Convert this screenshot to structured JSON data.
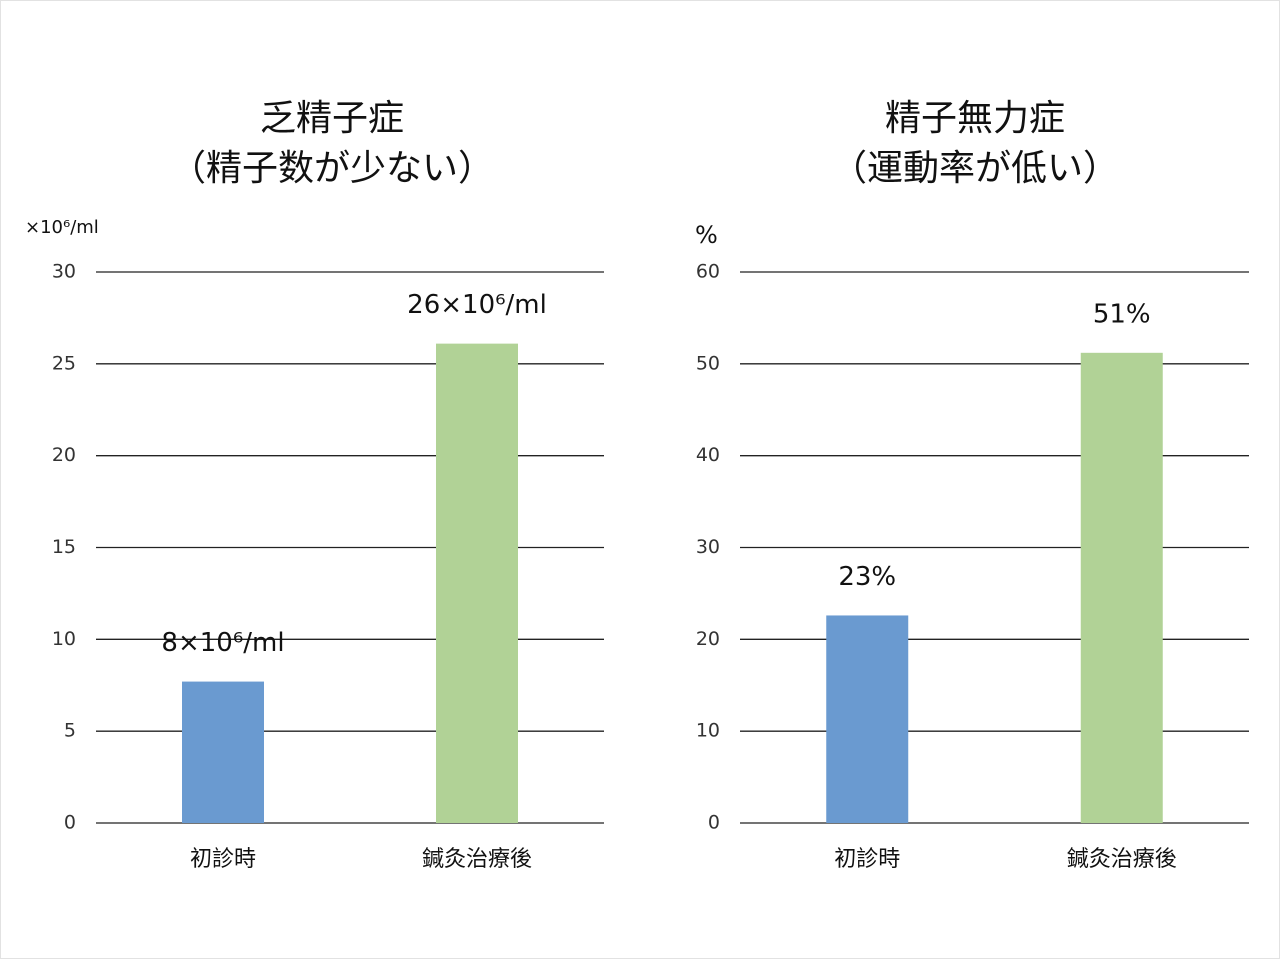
{
  "chart_data": [
    {
      "type": "bar",
      "title": "乏精子症",
      "subtitle": "（精子数が少ない）",
      "y_label": "×10⁶/ml",
      "categories": [
        "初診時",
        "鍼灸治療後"
      ],
      "values": [
        7.7,
        26.1
      ],
      "value_labels": [
        "8×10⁶/ml",
        "26×10⁶/ml"
      ],
      "colors": [
        "#6a9ad0",
        "#b1d296"
      ],
      "ylim": [
        0,
        30
      ],
      "yticks": [
        0,
        5,
        10,
        15,
        20,
        25,
        30
      ],
      "grid": true
    },
    {
      "type": "bar",
      "title": "精子無力症",
      "subtitle": "（運動率が低い）",
      "y_label": "%",
      "categories": [
        "初診時",
        "鍼灸治療後"
      ],
      "values": [
        22.6,
        51.2
      ],
      "value_labels": [
        "23%",
        "51%"
      ],
      "colors": [
        "#6a9ad0",
        "#b1d296"
      ],
      "ylim": [
        0,
        60
      ],
      "yticks": [
        0,
        10,
        20,
        30,
        40,
        50,
        60
      ],
      "grid": true
    }
  ]
}
